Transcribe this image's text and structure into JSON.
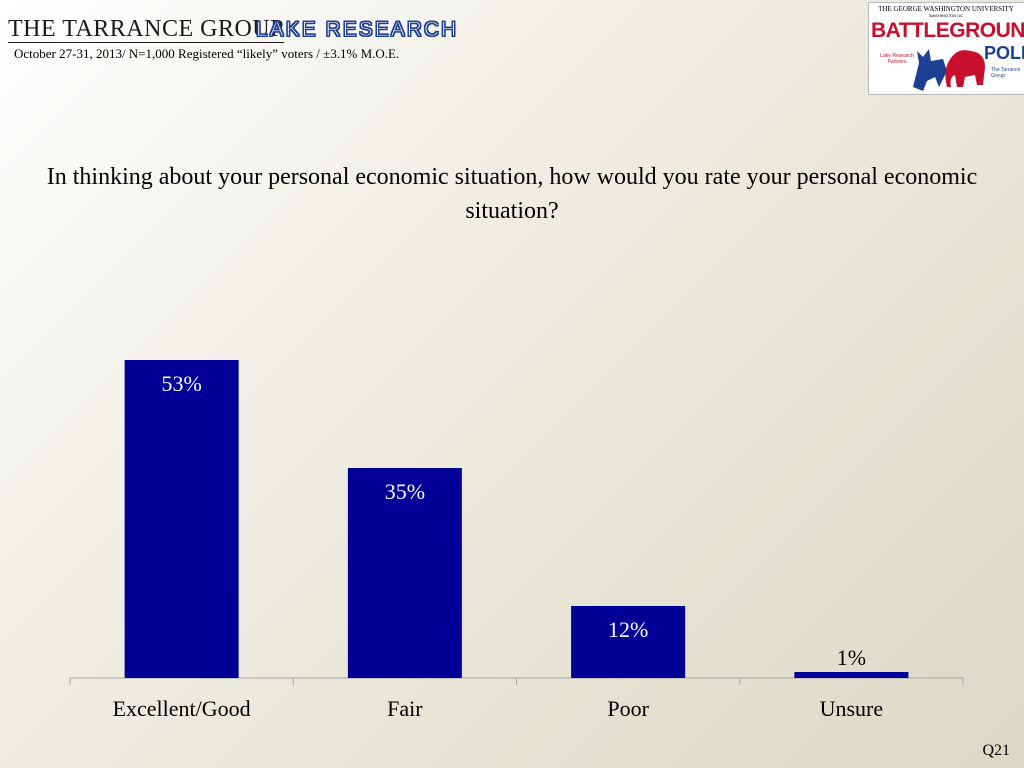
{
  "header": {
    "brand_left": "THE TARRANCE GROUP",
    "brand_right": "LAKE RESEARCH",
    "subtitle": "October 27-31, 2013/ N=1,000 Registered “likely” voters / ±3.1% M.O.E."
  },
  "logo": {
    "university": "THE GEORGE WASHINGTON UNIVERSITY",
    "location": "WASHINGTON DC",
    "battleground": "BATTLEGROUND",
    "poll": "POLL",
    "partner_left": "Lake Research Partners",
    "partner_right": "The Tarrance Group"
  },
  "question": "In thinking about your personal economic situation, how would you rate your personal economic situation?",
  "footer": {
    "ref": "Q21"
  },
  "colors": {
    "bar": "#000099",
    "axis": "#a6a6a6",
    "label_inside": "#ffffff",
    "label_outside": "#000000"
  },
  "chart_data": {
    "type": "bar",
    "categories": [
      "Excellent/Good",
      "Fair",
      "Poor",
      "Unsure"
    ],
    "values": [
      53,
      35,
      12,
      1
    ],
    "data_labels": [
      "53%",
      "35%",
      "12%",
      "1%"
    ],
    "ylim": [
      0,
      60
    ],
    "grid": false,
    "legend": "none"
  }
}
